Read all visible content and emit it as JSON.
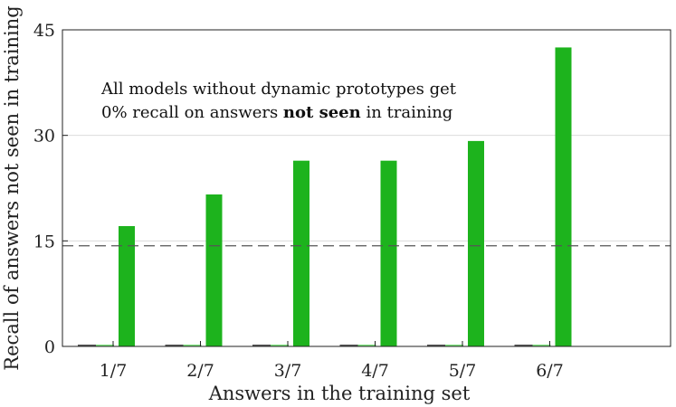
{
  "chart_data": {
    "type": "bar",
    "categories": [
      "1/7",
      "2/7",
      "3/7",
      "4/7",
      "5/7",
      "6/7"
    ],
    "series": [
      {
        "values": [
          0,
          0,
          0,
          0,
          0,
          0
        ],
        "color": "#555555"
      },
      {
        "values": [
          0,
          0,
          0,
          0,
          0,
          0
        ],
        "color": "#7be07b"
      },
      {
        "values": [
          17.1,
          21.6,
          26.4,
          26.4,
          29.2,
          42.5
        ],
        "color": "#1db31d"
      }
    ],
    "reference_line": {
      "value": 14.3,
      "style": "dashed"
    },
    "xlabel": "Answers in the training set",
    "ylabel": "Recall of answers not seen in training",
    "ylim": [
      0,
      45
    ],
    "yticks": [
      0,
      15,
      30,
      45
    ],
    "grid": "horizontal",
    "annotation": {
      "line1": "All models without dynamic prototypes get",
      "line2_prefix": "0% recall on answers ",
      "line2_bold": "not seen",
      "line2_suffix": " in training"
    }
  }
}
